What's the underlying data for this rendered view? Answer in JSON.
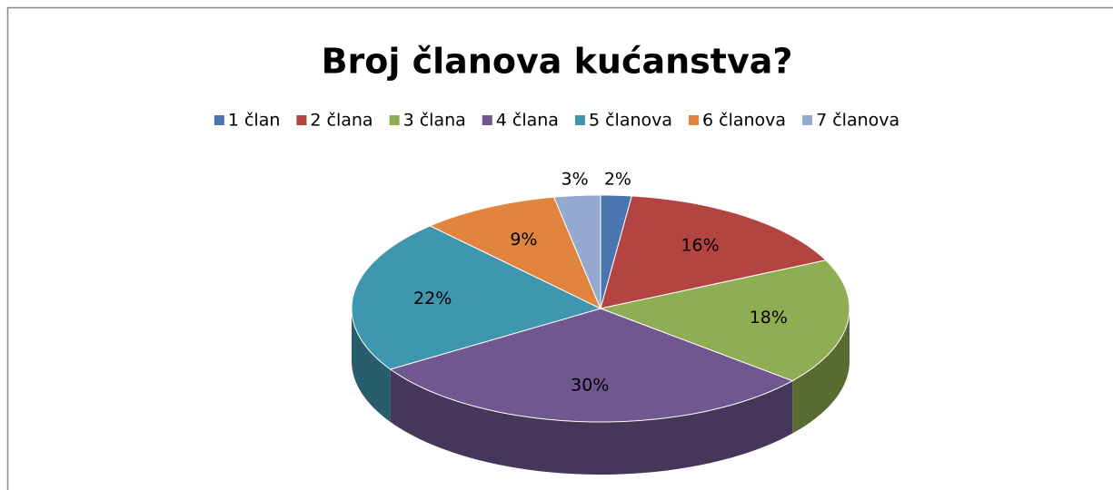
{
  "chart_data": {
    "type": "pie3d",
    "title": "Broj članova kućanstva?",
    "categories": [
      "1 član",
      "2 člana",
      "3 člana",
      "4 člana",
      "5 članova",
      "6 članova",
      "7 članova"
    ],
    "values": [
      2,
      16,
      18,
      30,
      22,
      9,
      3
    ],
    "value_labels": [
      "2%",
      "16%",
      "18%",
      "30%",
      "22%",
      "9%",
      "3%"
    ],
    "colors": [
      "#4a76b0",
      "#b34441",
      "#8fad52",
      "#71578f",
      "#3f96af",
      "#e0843e",
      "#93a9d0"
    ],
    "legend": "top"
  }
}
